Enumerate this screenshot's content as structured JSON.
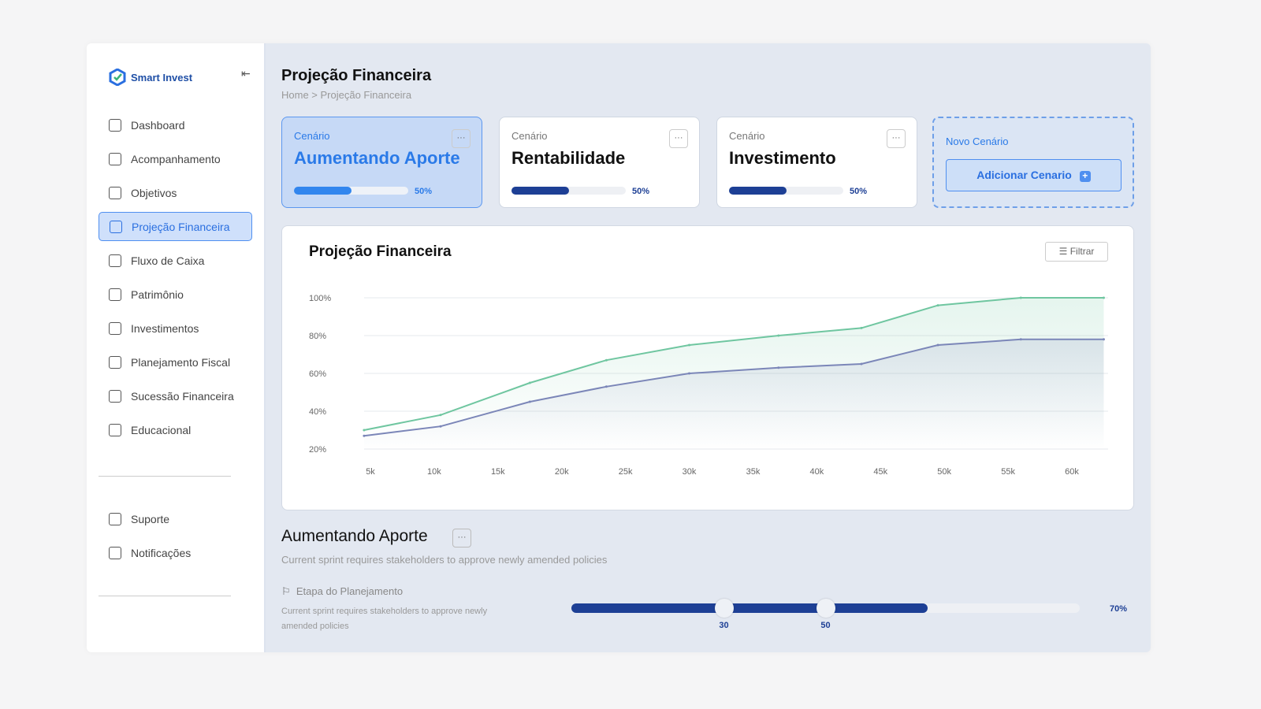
{
  "app": {
    "name": "Smart Invest"
  },
  "sidebar": {
    "items": [
      {
        "label": "Dashboard"
      },
      {
        "label": "Acompanhamento"
      },
      {
        "label": "Objetivos"
      },
      {
        "label": "Projeção Financeira"
      },
      {
        "label": "Fluxo de Caixa"
      },
      {
        "label": "Patrimônio"
      },
      {
        "label": "Investimentos"
      },
      {
        "label": "Planejamento Fiscal"
      },
      {
        "label": "Sucessão Financeira"
      },
      {
        "label": "Educacional"
      }
    ],
    "bottom": [
      {
        "label": "Suporte"
      },
      {
        "label": "Notificações"
      }
    ]
  },
  "header": {
    "title": "Projeção Financeira",
    "breadcrumb": "Home > Projeção Financeira"
  },
  "cards": [
    {
      "label": "Cenário",
      "name": "Aumentando Aporte",
      "progress": 50,
      "pct": "50%"
    },
    {
      "label": "Cenário",
      "name": "Rentabilidade",
      "progress": 50,
      "pct": "50%"
    },
    {
      "label": "Cenário",
      "name": "Investimento",
      "progress": 50,
      "pct": "50%"
    }
  ],
  "new_card": {
    "label": "Novo Cenário",
    "button": "Adicionar Cenario",
    "icon": "+"
  },
  "chart_panel": {
    "title": "Projeção Financeira",
    "filter": "Filtrar"
  },
  "chart_data": {
    "type": "line",
    "title": "Projeção Financeira",
    "xlabel": "",
    "ylabel": "",
    "xlim": [
      4,
      63
    ],
    "ylim": [
      20,
      100
    ],
    "xticks": [
      "5k",
      "10k",
      "15k",
      "20k",
      "25k",
      "30k",
      "35k",
      "40k",
      "45k",
      "50k",
      "55k",
      "60k"
    ],
    "xtick_values": [
      5,
      10,
      15,
      20,
      25,
      30,
      35,
      40,
      45,
      50,
      55,
      60
    ],
    "yticks": [
      "100%",
      "80%",
      "60%",
      "40%",
      "20%"
    ],
    "ytick_values": [
      100,
      80,
      60,
      40,
      20
    ],
    "series": [
      {
        "name": "green",
        "color": "#6fc6a0",
        "x": [
          4.5,
          10.5,
          17.5,
          23.5,
          30,
          37,
          43.5,
          49.5,
          56,
          62.5
        ],
        "y": [
          30,
          38,
          55,
          67,
          75,
          80,
          84,
          96,
          100,
          100
        ]
      },
      {
        "name": "blue",
        "color": "#7b86b8",
        "x": [
          4.5,
          10.5,
          17.5,
          23.5,
          30,
          37,
          43.5,
          49.5,
          56,
          62.5
        ],
        "y": [
          27,
          32,
          45,
          53,
          60,
          63,
          65,
          75,
          78,
          78
        ]
      }
    ]
  },
  "detail": {
    "title": "Aumentando Aporte",
    "desc": "Current sprint requires stakeholders to approve newly amended policies",
    "stage_label": "Etapa do Planejamento",
    "stage_desc": "Current sprint requires stakeholders to approve newly amended policies",
    "slider": {
      "fill": 70,
      "pct": "70%",
      "knobs": [
        30,
        50
      ],
      "knob_labels": [
        "30",
        "50"
      ]
    }
  },
  "dots": "···"
}
